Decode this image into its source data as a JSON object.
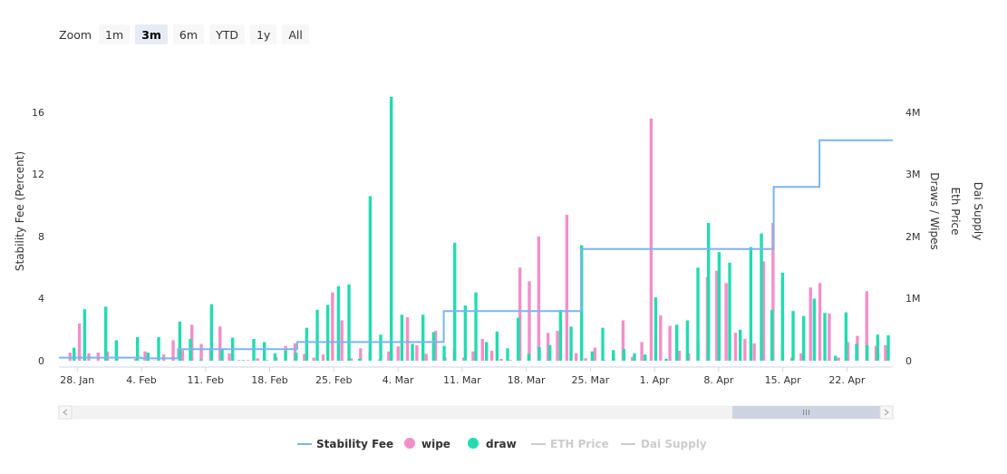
{
  "zoom": {
    "label": "Zoom",
    "buttons": [
      "1m",
      "3m",
      "6m",
      "YTD",
      "1y",
      "All"
    ],
    "selected": "3m"
  },
  "chart_data": {
    "type": "bar",
    "title": "",
    "x_ticks": [
      "28. Jan",
      "4. Feb",
      "11. Feb",
      "18. Feb",
      "25. Feb",
      "4. Mar",
      "11. Mar",
      "18. Mar",
      "25. Mar",
      "1. Apr",
      "8. Apr",
      "15. Apr",
      "22. Apr"
    ],
    "xlim": [
      "2018-01-26",
      "2018-04-27"
    ],
    "y_left": {
      "label": "Stability Fee (Percent)",
      "ticks": [
        "0",
        "4",
        "8",
        "12",
        "16"
      ],
      "range": [
        0,
        16
      ]
    },
    "y_right_draws": {
      "label": "Draws / Wipes",
      "ticks": [
        "0",
        "1M",
        "2M",
        "3M",
        "4M"
      ],
      "range": [
        0,
        4000000
      ]
    },
    "y_right_extra": [
      "Eth Price",
      "Dai Supply"
    ],
    "legend": [
      {
        "name": "Stability Fee",
        "color": "#7cb5ec",
        "symbol": "line",
        "visible": true
      },
      {
        "name": "wipe",
        "color": "#f28fc9",
        "symbol": "circle",
        "visible": true
      },
      {
        "name": "draw",
        "color": "#22dcb0",
        "symbol": "circle",
        "visible": true
      },
      {
        "name": "ETH Price",
        "color": "#cccccc",
        "symbol": "line",
        "visible": false
      },
      {
        "name": "Dai Supply",
        "color": "#cccccc",
        "symbol": "line",
        "visible": false
      }
    ],
    "stability_fee_steps": [
      {
        "from": "2018-01-26",
        "to": "2018-02-04",
        "value": 0.2
      },
      {
        "from": "2018-02-04",
        "to": "2018-02-08",
        "value": 0.15
      },
      {
        "from": "2018-02-08",
        "to": "2018-02-21",
        "value": 0.75
      },
      {
        "from": "2018-02-21",
        "to": "2018-03-09",
        "value": 1.2
      },
      {
        "from": "2018-03-09",
        "to": "2018-03-24",
        "value": 3.2
      },
      {
        "from": "2018-03-24",
        "to": "2018-04-14",
        "value": 7.2
      },
      {
        "from": "2018-04-14",
        "to": "2018-04-19",
        "value": 11.2
      },
      {
        "from": "2018-04-19",
        "to": "2018-04-27",
        "value": 14.2
      }
    ],
    "series": [
      {
        "name": "wipe",
        "color": "#f28fc9",
        "values": [
          130000,
          600000,
          120000,
          130000,
          150000,
          80000,
          0,
          30000,
          150000,
          5000,
          100000,
          330000,
          170000,
          580000,
          270000,
          170000,
          550000,
          120000,
          10000,
          10000,
          40000,
          10000,
          60000,
          240000,
          280000,
          110000,
          50000,
          100000,
          1100000,
          650000,
          40000,
          200000,
          150000,
          20000,
          150000,
          230000,
          700000,
          250000,
          110000,
          480000,
          60000,
          200000,
          50000,
          150000,
          350000,
          160000,
          30000,
          10000,
          1500000,
          1280000,
          2000000,
          450000,
          480000,
          2350000,
          120000,
          40000,
          210000,
          10000,
          40000,
          650000,
          60000,
          300000,
          3900000,
          730000,
          560000,
          160000,
          120000,
          320000,
          1350000,
          1450000,
          1250000,
          450000,
          350000,
          280000,
          1600000,
          2220000,
          280000,
          50000,
          120000,
          1180000,
          1250000,
          760000,
          50000,
          300000,
          400000,
          1120000,
          240000,
          250000
        ]
      },
      {
        "name": "draw",
        "color": "#22dcb0",
        "values": [
          210000,
          830000,
          0,
          870000,
          330000,
          0,
          380000,
          130000,
          380000,
          0,
          630000,
          350000,
          20000,
          910000,
          180000,
          370000,
          10000,
          350000,
          300000,
          120000,
          160000,
          130000,
          530000,
          820000,
          900000,
          1200000,
          1230000,
          30000,
          2650000,
          420000,
          4250000,
          740000,
          270000,
          740000,
          460000,
          240000,
          1900000,
          890000,
          1100000,
          300000,
          470000,
          200000,
          690000,
          110000,
          220000,
          250000,
          820000,
          550000,
          1860000,
          150000,
          530000,
          170000,
          190000,
          120000,
          100000,
          1020000,
          30000,
          580000,
          650000,
          1500000,
          2220000,
          1750000,
          1580000,
          500000,
          1830000,
          2050000,
          820000,
          1420000,
          800000,
          720000,
          1000000,
          770000,
          80000,
          780000,
          270000,
          250000,
          420000,
          410000
        ]
      }
    ]
  }
}
